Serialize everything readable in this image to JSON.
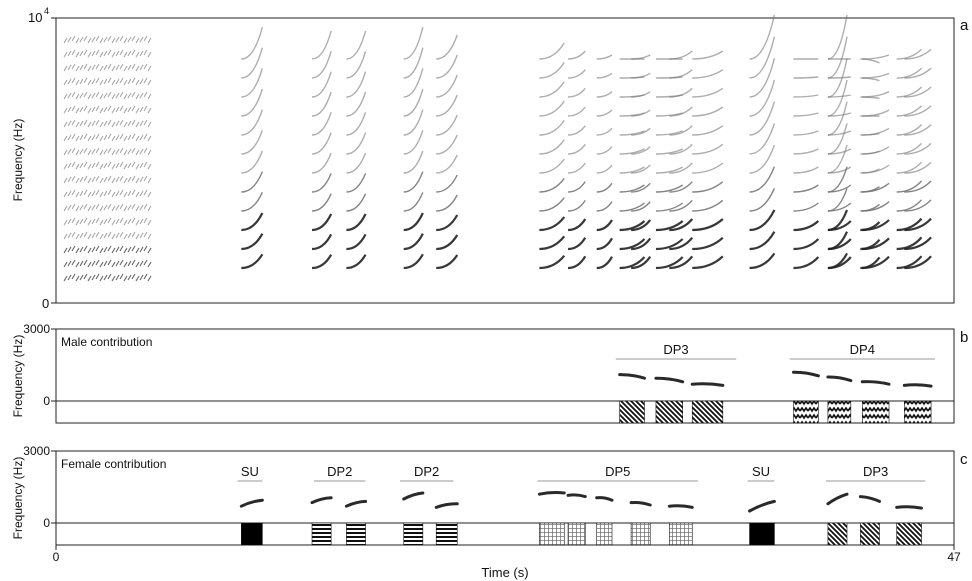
{
  "panel_letters": [
    "a",
    "b",
    "c"
  ],
  "shared": {
    "x_label": "Time (s)",
    "x_ticks": [
      "0",
      "47"
    ],
    "xlim": [
      0,
      47
    ]
  },
  "colors": {
    "ink": "#2a2a2a",
    "grey": "#9a9a9a",
    "black": "#000000"
  },
  "chart_data": [
    {
      "panel": "a",
      "type": "heatmap",
      "description": "spectrogram",
      "ylabel": "Frequency (Hz)",
      "y_ticks": [
        "10",
        "4",
        "0"
      ],
      "ylim": [
        0,
        10000
      ],
      "xlim": [
        0,
        47
      ]
    },
    {
      "panel": "b",
      "type": "line",
      "title": "Male contribution",
      "ylabel": "Frequency (Hz)",
      "y_ticks": [
        "3000",
        "0"
      ],
      "ylim": [
        -2000,
        3000
      ],
      "xlim": [
        0,
        47
      ],
      "groups": [
        {
          "label": "DP3",
          "start": 29.3,
          "end": 35.6
        },
        {
          "label": "DP4",
          "start": 38.4,
          "end": 46.0
        }
      ],
      "syllables": [
        {
          "group": "DP3",
          "pattern": "diag",
          "start": 29.5,
          "end": 30.8,
          "freq_start": 1100,
          "freq_end": 950
        },
        {
          "group": "DP3",
          "pattern": "diag",
          "start": 31.4,
          "end": 32.8,
          "freq_start": 950,
          "freq_end": 800
        },
        {
          "group": "DP3",
          "pattern": "diag",
          "start": 33.3,
          "end": 34.9,
          "freq_start": 700,
          "freq_end": 650
        },
        {
          "group": "DP4",
          "pattern": "zigzag",
          "start": 38.6,
          "end": 39.9,
          "freq_start": 1200,
          "freq_end": 1050
        },
        {
          "group": "DP4",
          "pattern": "zigzag",
          "start": 40.4,
          "end": 41.6,
          "freq_start": 1000,
          "freq_end": 850
        },
        {
          "group": "DP4",
          "pattern": "zigzag",
          "start": 42.2,
          "end": 43.6,
          "freq_start": 800,
          "freq_end": 700
        },
        {
          "group": "DP4",
          "pattern": "zigzag",
          "start": 44.4,
          "end": 45.8,
          "freq_start": 650,
          "freq_end": 620
        }
      ]
    },
    {
      "panel": "c",
      "type": "line",
      "title": "Female contribution",
      "ylabel": "Frequency (Hz)",
      "y_ticks": [
        "3000",
        "0"
      ],
      "ylim": [
        -2000,
        3000
      ],
      "xlim": [
        0,
        47
      ],
      "groups": [
        {
          "label": "SU",
          "start": 9.5,
          "end": 10.8
        },
        {
          "label": "DP2",
          "start": 13.5,
          "end": 16.2
        },
        {
          "label": "DP2",
          "start": 18.0,
          "end": 20.8
        },
        {
          "label": "DP5",
          "start": 25.2,
          "end": 33.6
        },
        {
          "label": "SU",
          "start": 36.2,
          "end": 37.6
        },
        {
          "label": "DP3",
          "start": 40.3,
          "end": 45.5
        }
      ],
      "syllables": [
        {
          "group": "SU",
          "pattern": "solid",
          "start": 9.7,
          "end": 10.8,
          "freq_start": 700,
          "freq_end": 950
        },
        {
          "group": "DP2",
          "pattern": "hlines",
          "start": 13.4,
          "end": 14.4,
          "freq_start": 850,
          "freq_end": 1050
        },
        {
          "group": "DP2",
          "pattern": "hlines",
          "start": 15.2,
          "end": 16.2,
          "freq_start": 700,
          "freq_end": 900
        },
        {
          "group": "DP2",
          "pattern": "hlines",
          "start": 18.2,
          "end": 19.2,
          "freq_start": 1000,
          "freq_end": 1250
        },
        {
          "group": "DP2",
          "pattern": "hlines",
          "start": 19.9,
          "end": 21.0,
          "freq_start": 650,
          "freq_end": 800
        },
        {
          "group": "DP5",
          "pattern": "grid",
          "start": 25.3,
          "end": 26.6,
          "freq_start": 1200,
          "freq_end": 1250
        },
        {
          "group": "DP5",
          "pattern": "grid",
          "start": 26.8,
          "end": 27.7,
          "freq_start": 1150,
          "freq_end": 1100
        },
        {
          "group": "DP5",
          "pattern": "grid",
          "start": 28.3,
          "end": 29.1,
          "freq_start": 1050,
          "freq_end": 950
        },
        {
          "group": "DP5",
          "pattern": "grid",
          "start": 30.1,
          "end": 31.1,
          "freq_start": 850,
          "freq_end": 750
        },
        {
          "group": "DP5",
          "pattern": "grid",
          "start": 32.1,
          "end": 33.3,
          "freq_start": 700,
          "freq_end": 650
        },
        {
          "group": "SU",
          "pattern": "solid",
          "start": 36.3,
          "end": 37.6,
          "freq_start": 500,
          "freq_end": 900
        },
        {
          "group": "DP3",
          "pattern": "diag",
          "start": 40.4,
          "end": 41.4,
          "freq_start": 800,
          "freq_end": 1200
        },
        {
          "group": "DP3",
          "pattern": "diag",
          "start": 42.1,
          "end": 43.1,
          "freq_start": 1100,
          "freq_end": 900
        },
        {
          "group": "DP3",
          "pattern": "diag",
          "start": 44.0,
          "end": 45.3,
          "freq_start": 650,
          "freq_end": 620
        }
      ]
    }
  ]
}
